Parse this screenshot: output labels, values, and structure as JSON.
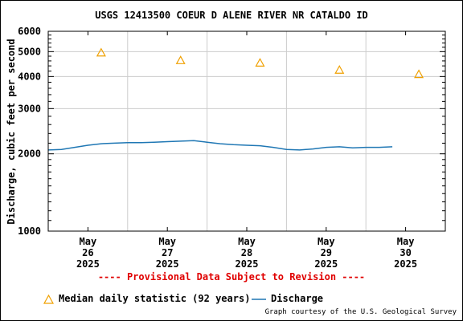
{
  "chart_data": {
    "type": "line",
    "title": "USGS 12413500 COEUR D ALENE RIVER NR CATALDO ID",
    "ylabel": "Discharge, cubic feet per second",
    "xlabel": "",
    "y_scale": "log",
    "ylim": [
      1000,
      6000
    ],
    "xlim": [
      "2025-05-25 20:00",
      "2025-05-30 20:00"
    ],
    "y_ticks": [
      "1000",
      "2000",
      "3000",
      "4000",
      "5000",
      "6000"
    ],
    "x_ticks": [
      {
        "month": "May",
        "day": "26",
        "year": "2025",
        "x": "2025-05-26 08:00"
      },
      {
        "month": "May",
        "day": "27",
        "year": "2025",
        "x": "2025-05-27 08:00"
      },
      {
        "month": "May",
        "day": "28",
        "year": "2025",
        "x": "2025-05-28 08:00"
      },
      {
        "month": "May",
        "day": "29",
        "year": "2025",
        "x": "2025-05-29 08:00"
      },
      {
        "month": "May",
        "day": "30",
        "year": "2025",
        "x": "2025-05-30 08:00"
      }
    ],
    "grid": true,
    "legend_position": "bottom",
    "series": [
      {
        "name": "Median daily statistic (92 years)",
        "style": "triangle-markers",
        "color": "#f0a000",
        "x": [
          "2025-05-26 12:00",
          "2025-05-27 12:00",
          "2025-05-28 12:00",
          "2025-05-29 12:00",
          "2025-05-30 12:00"
        ],
        "y": [
          4950,
          4620,
          4520,
          4240,
          4080
        ]
      },
      {
        "name": "Discharge",
        "style": "line",
        "color": "#1f77b4",
        "x": [
          "2025-05-25 20:00",
          "2025-05-26 00:00",
          "2025-05-26 04:00",
          "2025-05-26 08:00",
          "2025-05-26 12:00",
          "2025-05-26 16:00",
          "2025-05-26 20:00",
          "2025-05-27 00:00",
          "2025-05-27 04:00",
          "2025-05-27 08:00",
          "2025-05-27 12:00",
          "2025-05-27 16:00",
          "2025-05-27 20:00",
          "2025-05-28 00:00",
          "2025-05-28 04:00",
          "2025-05-28 08:00",
          "2025-05-28 12:00",
          "2025-05-28 16:00",
          "2025-05-28 20:00",
          "2025-05-29 00:00",
          "2025-05-29 04:00",
          "2025-05-29 08:00",
          "2025-05-29 12:00",
          "2025-05-29 16:00",
          "2025-05-29 20:00",
          "2025-05-30 00:00",
          "2025-05-30 04:00"
        ],
        "y": [
          2070,
          2080,
          2120,
          2160,
          2190,
          2200,
          2210,
          2210,
          2220,
          2230,
          2240,
          2250,
          2220,
          2190,
          2170,
          2160,
          2150,
          2120,
          2080,
          2070,
          2090,
          2120,
          2130,
          2110,
          2120,
          2120,
          2130
        ]
      }
    ]
  },
  "provisional_note": "---- Provisional Data Subject to Revision ----",
  "credit": "Graph courtesy of the U.S. Geological Survey"
}
